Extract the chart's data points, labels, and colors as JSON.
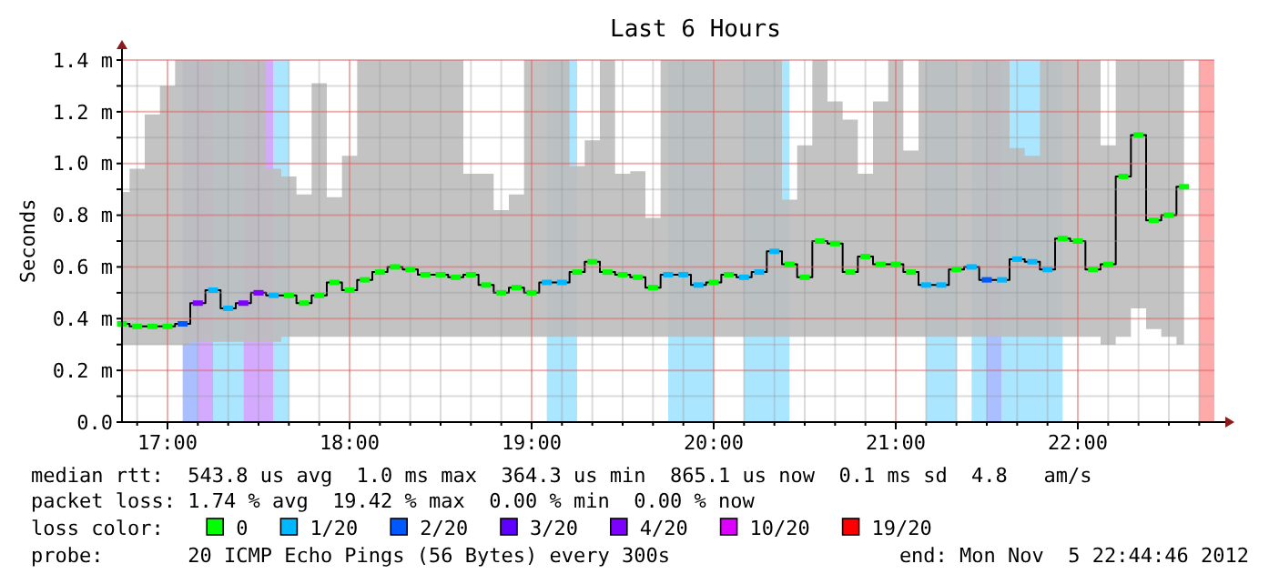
{
  "chart_data": {
    "type": "step",
    "title": "Last 6 Hours",
    "ylabel": "Seconds",
    "legend_title": "loss color:",
    "legend": "bottom",
    "grid": true,
    "xlim": [
      "2012-11-05T16:45",
      "2012-11-05T22:45"
    ],
    "xticks": [
      {
        "value": "2012-11-05T16:50",
        "label": null
      },
      {
        "value": "2012-11-05T17:00",
        "label": "17:00"
      },
      {
        "value": "2012-11-05T17:10",
        "label": null
      },
      {
        "value": "2012-11-05T17:20",
        "label": null
      },
      {
        "value": "2012-11-05T17:30",
        "label": null
      },
      {
        "value": "2012-11-05T17:40",
        "label": null
      },
      {
        "value": "2012-11-05T17:50",
        "label": null
      },
      {
        "value": "2012-11-05T18:00",
        "label": "18:00"
      },
      {
        "value": "2012-11-05T18:10",
        "label": null
      },
      {
        "value": "2012-11-05T18:20",
        "label": null
      },
      {
        "value": "2012-11-05T18:30",
        "label": null
      },
      {
        "value": "2012-11-05T18:40",
        "label": null
      },
      {
        "value": "2012-11-05T18:50",
        "label": null
      },
      {
        "value": "2012-11-05T19:00",
        "label": "19:00"
      },
      {
        "value": "2012-11-05T19:10",
        "label": null
      },
      {
        "value": "2012-11-05T19:20",
        "label": null
      },
      {
        "value": "2012-11-05T19:30",
        "label": null
      },
      {
        "value": "2012-11-05T19:40",
        "label": null
      },
      {
        "value": "2012-11-05T19:50",
        "label": null
      },
      {
        "value": "2012-11-05T20:00",
        "label": "20:00"
      },
      {
        "value": "2012-11-05T20:10",
        "label": null
      },
      {
        "value": "2012-11-05T20:20",
        "label": null
      },
      {
        "value": "2012-11-05T20:30",
        "label": null
      },
      {
        "value": "2012-11-05T20:40",
        "label": null
      },
      {
        "value": "2012-11-05T20:50",
        "label": null
      },
      {
        "value": "2012-11-05T21:00",
        "label": "21:00"
      },
      {
        "value": "2012-11-05T21:10",
        "label": null
      },
      {
        "value": "2012-11-05T21:20",
        "label": null
      },
      {
        "value": "2012-11-05T21:30",
        "label": null
      },
      {
        "value": "2012-11-05T21:40",
        "label": null
      },
      {
        "value": "2012-11-05T21:50",
        "label": null
      },
      {
        "value": "2012-11-05T22:00",
        "label": "22:00"
      },
      {
        "value": "2012-11-05T22:10",
        "label": null
      },
      {
        "value": "2012-11-05T22:20",
        "label": null
      },
      {
        "value": "2012-11-05T22:30",
        "label": null
      },
      {
        "value": "2012-11-05T22:40",
        "label": null
      }
    ],
    "ylim": [
      0,
      1.4
    ],
    "yticks": [
      {
        "value": 0,
        "label": "0.0"
      },
      {
        "value": 0.1,
        "label": null
      },
      {
        "value": 0.2,
        "label": "0.2 m"
      },
      {
        "value": 0.3,
        "label": null
      },
      {
        "value": 0.4,
        "label": "0.4 m"
      },
      {
        "value": 0.5,
        "label": null
      },
      {
        "value": 0.6,
        "label": "0.6 m"
      },
      {
        "value": 0.7,
        "label": null
      },
      {
        "value": 0.8,
        "label": "0.8 m"
      },
      {
        "value": 0.9,
        "label": null
      },
      {
        "value": 1.0,
        "label": "1.0 m"
      },
      {
        "value": 1.1,
        "label": null
      },
      {
        "value": 1.2,
        "label": "1.2 m"
      },
      {
        "value": 1.3,
        "label": null
      },
      {
        "value": 1.4,
        "label": "1.4 m"
      }
    ],
    "bands": [
      {
        "axis": "x",
        "from": "2012-11-05T17:05",
        "to": "2012-11-05T17:10",
        "color": "#aabfff"
      },
      {
        "axis": "x",
        "from": "2012-11-05T17:10",
        "to": "2012-11-05T17:15",
        "color": "#d4aaff"
      },
      {
        "axis": "x",
        "from": "2012-11-05T17:15",
        "to": "2012-11-05T17:25",
        "color": "#aae6ff"
      },
      {
        "axis": "x",
        "from": "2012-11-05T17:25",
        "to": "2012-11-05T17:35",
        "color": "#d4aaff"
      },
      {
        "axis": "x",
        "from": "2012-11-05T17:35",
        "to": "2012-11-05T17:40",
        "color": "#aae6ff"
      },
      {
        "axis": "x",
        "from": "2012-11-05T19:05",
        "to": "2012-11-05T19:15",
        "color": "#aae6ff"
      },
      {
        "axis": "x",
        "from": "2012-11-05T19:45",
        "to": "2012-11-05T20:00",
        "color": "#aae6ff"
      },
      {
        "axis": "x",
        "from": "2012-11-05T20:10",
        "to": "2012-11-05T20:25",
        "color": "#aae6ff"
      },
      {
        "axis": "x",
        "from": "2012-11-05T21:10",
        "to": "2012-11-05T21:20",
        "color": "#aae6ff"
      },
      {
        "axis": "x",
        "from": "2012-11-05T21:25",
        "to": "2012-11-05T21:30",
        "color": "#aae6ff"
      },
      {
        "axis": "x",
        "from": "2012-11-05T21:30",
        "to": "2012-11-05T21:35",
        "color": "#aabfff"
      },
      {
        "axis": "x",
        "from": "2012-11-05T21:35",
        "to": "2012-11-05T21:55",
        "color": "#aae6ff"
      },
      {
        "axis": "x",
        "from": "2012-11-05T22:40",
        "to": "2012-11-05T22:45",
        "color": "#ffaaaa"
      }
    ],
    "annotations": [
      "median rtt:  543.8 us avg  1.0 ms max  364.3 us min  865.1 us now  0.1 ms sd  4.8   am/s",
      "packet loss: 1.74 % avg  19.42 % max  0.00 % min  0.00 % now",
      "probe:       20 ICMP Echo Pings (56 Bytes) every 300s",
      "end: Mon Nov  5 22:44:46 2012"
    ],
    "series": [
      {
        "color": "#000000",
        "x": [
          "2012-11-05T16:45",
          "2012-11-05T16:50",
          "2012-11-05T16:55",
          "2012-11-05T17:00",
          "2012-11-05T17:05",
          "2012-11-05T17:10",
          "2012-11-05T17:15",
          "2012-11-05T17:20",
          "2012-11-05T17:25",
          "2012-11-05T17:30",
          "2012-11-05T17:35",
          "2012-11-05T17:40",
          "2012-11-05T17:45",
          "2012-11-05T17:50",
          "2012-11-05T17:55",
          "2012-11-05T18:00",
          "2012-11-05T18:05",
          "2012-11-05T18:10",
          "2012-11-05T18:15",
          "2012-11-05T18:20",
          "2012-11-05T18:25",
          "2012-11-05T18:30",
          "2012-11-05T18:35",
          "2012-11-05T18:40",
          "2012-11-05T18:45",
          "2012-11-05T18:50",
          "2012-11-05T18:55",
          "2012-11-05T19:00",
          "2012-11-05T19:05",
          "2012-11-05T19:10",
          "2012-11-05T19:15",
          "2012-11-05T19:20",
          "2012-11-05T19:25",
          "2012-11-05T19:30",
          "2012-11-05T19:35",
          "2012-11-05T19:40",
          "2012-11-05T19:45",
          "2012-11-05T19:50",
          "2012-11-05T19:55",
          "2012-11-05T20:00",
          "2012-11-05T20:05",
          "2012-11-05T20:10",
          "2012-11-05T20:15",
          "2012-11-05T20:20",
          "2012-11-05T20:25",
          "2012-11-05T20:30",
          "2012-11-05T20:35",
          "2012-11-05T20:40",
          "2012-11-05T20:45",
          "2012-11-05T20:50",
          "2012-11-05T20:55",
          "2012-11-05T21:00",
          "2012-11-05T21:05",
          "2012-11-05T21:10",
          "2012-11-05T21:15",
          "2012-11-05T21:20",
          "2012-11-05T21:25",
          "2012-11-05T21:30",
          "2012-11-05T21:35",
          "2012-11-05T21:40",
          "2012-11-05T21:45",
          "2012-11-05T21:50",
          "2012-11-05T21:55",
          "2012-11-05T22:00",
          "2012-11-05T22:05",
          "2012-11-05T22:10",
          "2012-11-05T22:15",
          "2012-11-05T22:20",
          "2012-11-05T22:25",
          "2012-11-05T22:30",
          "2012-11-05T22:35"
        ],
        "values": [
          0.38,
          0.37,
          0.37,
          0.37,
          0.38,
          0.46,
          0.51,
          0.44,
          0.46,
          0.5,
          0.49,
          0.49,
          0.46,
          0.49,
          0.54,
          0.51,
          0.55,
          0.58,
          0.6,
          0.59,
          0.57,
          0.57,
          0.56,
          0.57,
          0.53,
          0.5,
          0.52,
          0.5,
          0.54,
          0.54,
          0.58,
          0.62,
          0.58,
          0.57,
          0.56,
          0.52,
          0.57,
          0.57,
          0.53,
          0.54,
          0.57,
          0.56,
          0.58,
          0.66,
          0.61,
          0.56,
          0.7,
          0.69,
          0.58,
          0.64,
          0.61,
          0.61,
          0.58,
          0.53,
          0.53,
          0.59,
          0.6,
          0.55,
          0.55,
          0.63,
          0.62,
          0.59,
          0.71,
          0.7,
          0.59,
          0.61,
          0.95,
          1.11,
          0.78,
          0.8,
          0.91
        ],
        "lower": [
          0.3,
          0.3,
          0.3,
          0.3,
          0.3,
          0.31,
          0.31,
          0.31,
          0.31,
          0.31,
          0.31,
          0.33,
          0.33,
          0.33,
          0.33,
          0.33,
          0.33,
          0.33,
          0.33,
          0.33,
          0.33,
          0.33,
          0.33,
          0.33,
          0.33,
          0.33,
          0.33,
          0.33,
          0.33,
          0.33,
          0.33,
          0.33,
          0.33,
          0.33,
          0.33,
          0.33,
          0.33,
          0.33,
          0.33,
          0.33,
          0.33,
          0.33,
          0.33,
          0.33,
          0.33,
          0.33,
          0.33,
          0.33,
          0.33,
          0.33,
          0.33,
          0.33,
          0.33,
          0.33,
          0.33,
          0.33,
          0.33,
          0.33,
          0.33,
          0.33,
          0.33,
          0.33,
          0.33,
          0.33,
          0.33,
          0.3,
          0.33,
          0.44,
          0.36,
          0.33,
          0.3
        ],
        "upper": [
          0.89,
          0.98,
          1.19,
          1.3,
          1.4,
          1.4,
          1.4,
          1.4,
          1.4,
          1.4,
          0.98,
          0.95,
          0.88,
          1.31,
          0.87,
          1.03,
          1.4,
          1.4,
          1.4,
          1.4,
          1.4,
          1.4,
          1.4,
          0.96,
          0.96,
          0.82,
          0.88,
          1.4,
          1.4,
          1.4,
          0.99,
          1.09,
          1.4,
          0.96,
          0.97,
          0.79,
          1.4,
          1.4,
          1.4,
          1.4,
          1.4,
          1.4,
          1.4,
          1.4,
          0.86,
          1.07,
          1.4,
          1.24,
          1.17,
          0.96,
          1.24,
          1.4,
          1.05,
          1.4,
          1.4,
          1.4,
          1.4,
          1.4,
          1.4,
          1.06,
          1.03,
          1.4,
          1.4,
          1.4,
          1.4,
          1.07,
          1.4,
          1.4,
          1.4,
          1.4,
          1.4
        ]
      },
      {
        "type": "scatter",
        "name": "0",
        "color": "#00ff00",
        "x": [
          "2012-11-05T16:45",
          "2012-11-05T16:50",
          "2012-11-05T16:55",
          "2012-11-05T17:00",
          "2012-11-05T17:40",
          "2012-11-05T17:45",
          "2012-11-05T17:50",
          "2012-11-05T17:55",
          "2012-11-05T18:00",
          "2012-11-05T18:05",
          "2012-11-05T18:10",
          "2012-11-05T18:15",
          "2012-11-05T18:20",
          "2012-11-05T18:25",
          "2012-11-05T18:30",
          "2012-11-05T18:35",
          "2012-11-05T18:40",
          "2012-11-05T18:45",
          "2012-11-05T18:50",
          "2012-11-05T18:55",
          "2012-11-05T19:00",
          "2012-11-05T19:15",
          "2012-11-05T19:20",
          "2012-11-05T19:25",
          "2012-11-05T19:30",
          "2012-11-05T19:35",
          "2012-11-05T19:40",
          "2012-11-05T20:00",
          "2012-11-05T20:05",
          "2012-11-05T20:25",
          "2012-11-05T20:30",
          "2012-11-05T20:35",
          "2012-11-05T20:40",
          "2012-11-05T20:45",
          "2012-11-05T20:50",
          "2012-11-05T20:55",
          "2012-11-05T21:00",
          "2012-11-05T21:05",
          "2012-11-05T21:20",
          "2012-11-05T21:55",
          "2012-11-05T22:00",
          "2012-11-05T22:05",
          "2012-11-05T22:10",
          "2012-11-05T22:15",
          "2012-11-05T22:20",
          "2012-11-05T22:25",
          "2012-11-05T22:30",
          "2012-11-05T22:35"
        ],
        "values": [
          0.38,
          0.37,
          0.37,
          0.37,
          0.49,
          0.46,
          0.49,
          0.54,
          0.51,
          0.55,
          0.58,
          0.6,
          0.59,
          0.57,
          0.57,
          0.56,
          0.57,
          0.53,
          0.5,
          0.52,
          0.5,
          0.58,
          0.62,
          0.58,
          0.57,
          0.56,
          0.52,
          0.54,
          0.57,
          0.61,
          0.56,
          0.7,
          0.69,
          0.58,
          0.64,
          0.61,
          0.61,
          0.58,
          0.59,
          0.71,
          0.7,
          0.59,
          0.61,
          0.95,
          1.11,
          0.78,
          0.8,
          0.91
        ]
      },
      {
        "type": "scatter",
        "name": "1/20",
        "color": "#00b8ff",
        "x": [
          "2012-11-05T17:15",
          "2012-11-05T17:20",
          "2012-11-05T17:35",
          "2012-11-05T19:05",
          "2012-11-05T19:10",
          "2012-11-05T19:45",
          "2012-11-05T19:50",
          "2012-11-05T19:55",
          "2012-11-05T20:10",
          "2012-11-05T20:15",
          "2012-11-05T20:20",
          "2012-11-05T21:10",
          "2012-11-05T21:15",
          "2012-11-05T21:25",
          "2012-11-05T21:35",
          "2012-11-05T21:40",
          "2012-11-05T21:45",
          "2012-11-05T21:50"
        ],
        "values": [
          0.51,
          0.44,
          0.49,
          0.54,
          0.54,
          0.57,
          0.57,
          0.53,
          0.56,
          0.58,
          0.66,
          0.53,
          0.53,
          0.6,
          0.55,
          0.63,
          0.62,
          0.59
        ]
      },
      {
        "type": "scatter",
        "name": "2/20",
        "color": "#0059ff",
        "x": [
          "2012-11-05T17:05",
          "2012-11-05T21:30"
        ],
        "values": [
          0.38,
          0.55
        ]
      },
      {
        "type": "scatter",
        "name": "3/20",
        "color": "#5e00ff"
      },
      {
        "type": "scatter",
        "name": "4/20",
        "color": "#7e00ff",
        "x": [
          "2012-11-05T17:10",
          "2012-11-05T17:25",
          "2012-11-05T17:30"
        ],
        "values": [
          0.46,
          0.46,
          0.5
        ]
      },
      {
        "type": "scatter",
        "name": "10/20",
        "color": "#dd00ff"
      },
      {
        "type": "scatter",
        "name": "19/20",
        "color": "#ff0000"
      }
    ]
  }
}
